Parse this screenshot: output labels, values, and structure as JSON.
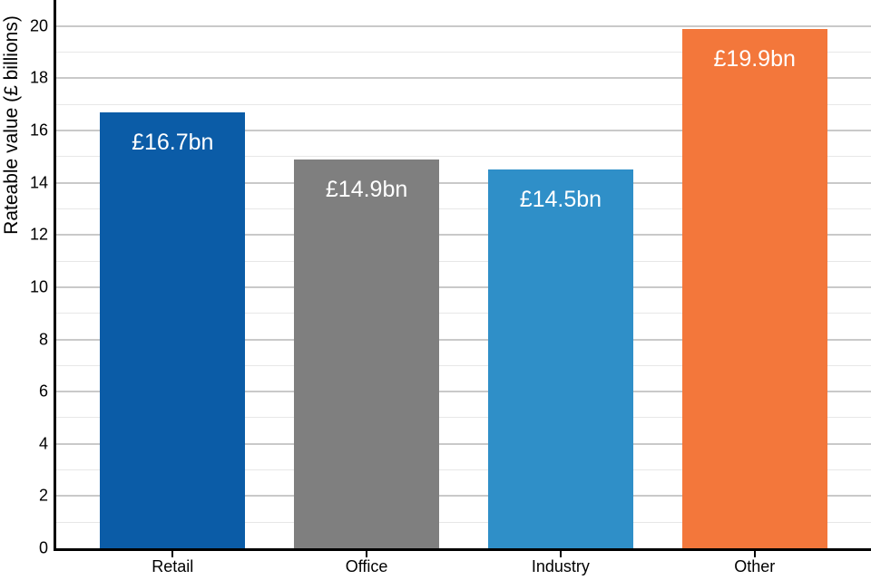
{
  "chart_data": {
    "type": "bar",
    "title": "",
    "xlabel": "",
    "ylabel": "Rateable value (£ billions)",
    "categories": [
      "Retail",
      "Office",
      "Industry",
      "Other"
    ],
    "values": [
      16.7,
      14.9,
      14.5,
      19.9
    ],
    "bar_labels": [
      "£16.7bn",
      "£14.9bn",
      "£14.5bn",
      "£19.9bn"
    ],
    "bar_colors": [
      "#0b5ca7",
      "#7f7f7f",
      "#2f8fc8",
      "#f3773b"
    ],
    "bar_label_color": "#ffffff",
    "ylim": [
      0,
      21
    ],
    "yticks": [
      0,
      2,
      4,
      6,
      8,
      10,
      12,
      14,
      16,
      18,
      20
    ],
    "grid": "horizontal gridlines: major at even values, minor at odd values",
    "grid_major_color": "#c9c9c9",
    "grid_minor_color": "#e7e7e7",
    "axis_color": "#000000",
    "background_color": "#ffffff",
    "legend": "none"
  }
}
